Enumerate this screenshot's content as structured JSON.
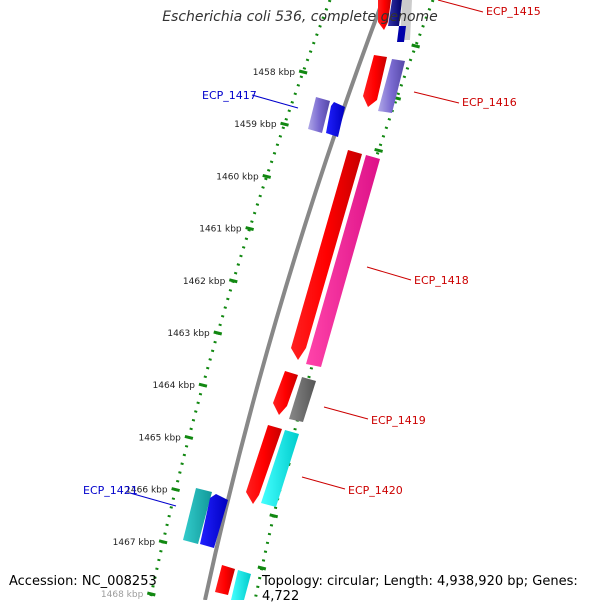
{
  "title": "Escherichia coli 536, complete genome",
  "footer": {
    "accession": "Accession: NC_008253",
    "topology": "Topology: circular; Length: 4,938,920 bp; Genes: 4,722"
  },
  "colors": {
    "forward_label": "#cc0000",
    "reverse_label": "#0000cc",
    "backbone": "#888888",
    "dotted_track": "#118811"
  },
  "ticks": [
    {
      "label": "1458 kbp"
    },
    {
      "label": "1459 kbp"
    },
    {
      "label": "1460 kbp"
    },
    {
      "label": "1461 kbp"
    },
    {
      "label": "1462 kbp"
    },
    {
      "label": "1463 kbp"
    },
    {
      "label": "1464 kbp"
    },
    {
      "label": "1465 kbp"
    },
    {
      "label": "1466 kbp"
    },
    {
      "label": "1467 kbp"
    },
    {
      "label": "1468 kbp"
    }
  ],
  "genes": [
    {
      "label": "ECP_1415",
      "strand": "forward"
    },
    {
      "label": "ECP_1416",
      "strand": "forward"
    },
    {
      "label": "ECP_1417",
      "strand": "reverse"
    },
    {
      "label": "ECP_1418",
      "strand": "forward"
    },
    {
      "label": "ECP_1419",
      "strand": "forward"
    },
    {
      "label": "ECP_1420",
      "strand": "forward"
    },
    {
      "label": "ECP_1421",
      "strand": "reverse"
    }
  ]
}
